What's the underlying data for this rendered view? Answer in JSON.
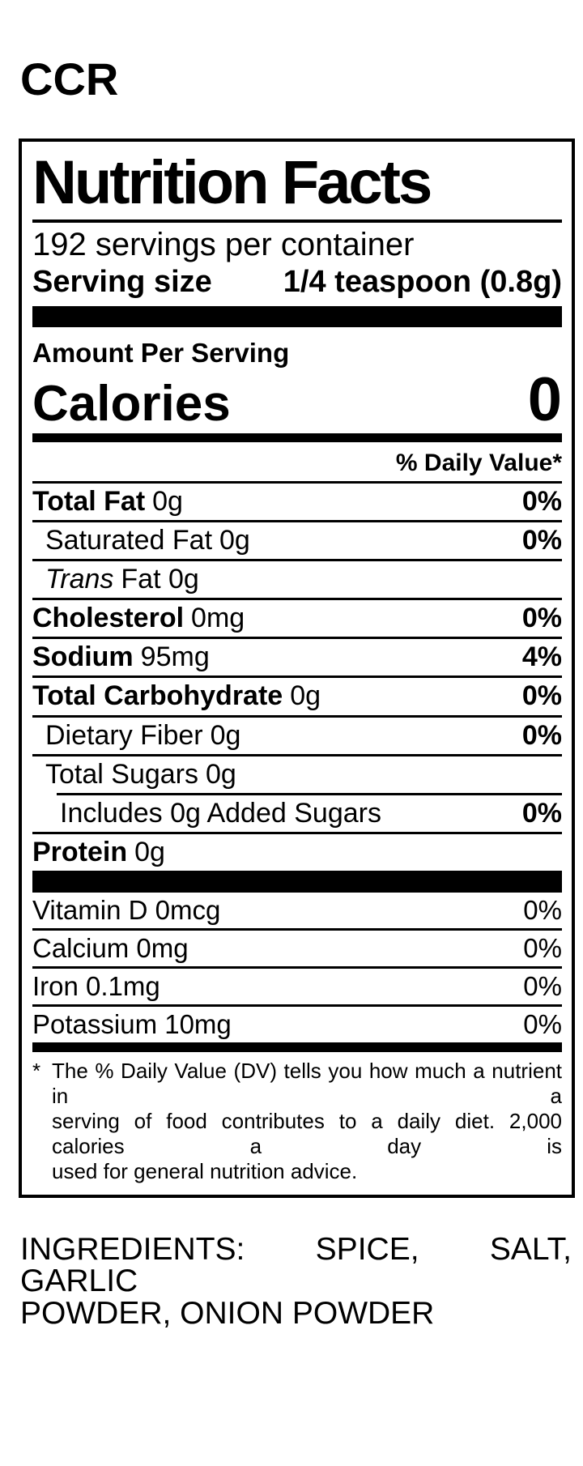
{
  "brand": "CCR",
  "label": {
    "title": "Nutrition Facts",
    "servings_per_container": "192 servings per container",
    "serving_size": {
      "label": "Serving size",
      "value": "1/4 teaspoon (0.8g)"
    },
    "amount_per_serving": "Amount Per Serving",
    "calories": {
      "label": "Calories",
      "value": "0"
    },
    "daily_value_header": "% Daily Value*",
    "rows": [
      {
        "name": "Total Fat",
        "amount": "0g",
        "dv": "0%"
      },
      {
        "name": "Saturated Fat",
        "amount": "0g",
        "dv": "0%"
      },
      {
        "name": "Trans",
        "amount": "Fat 0g",
        "dv": ""
      },
      {
        "name": "Cholesterol",
        "amount": "0mg",
        "dv": "0%"
      },
      {
        "name": "Sodium",
        "amount": "95mg",
        "dv": "4%"
      },
      {
        "name": "Total Carbohydrate",
        "amount": "0g",
        "dv": "0%"
      },
      {
        "name": "Dietary Fiber",
        "amount": "0g",
        "dv": "0%"
      },
      {
        "name": "Total Sugars",
        "amount": "0g",
        "dv": ""
      },
      {
        "name": "Includes 0g Added Sugars",
        "amount": "",
        "dv": "0%"
      },
      {
        "name": "Protein",
        "amount": "0g",
        "dv": ""
      }
    ],
    "vitamins": [
      {
        "name": "Vitamin D 0mcg",
        "dv": "0%"
      },
      {
        "name": "Calcium 0mg",
        "dv": "0%"
      },
      {
        "name": "Iron 0.1mg",
        "dv": "0%"
      },
      {
        "name": "Potassium 10mg",
        "dv": "0%"
      }
    ],
    "footnote": {
      "star": "*",
      "lines": [
        "The % Daily Value (DV) tells you how much a nutrient in a",
        "serving of food contributes to a daily diet. 2,000 calories a day is",
        "used for general nutrition advice."
      ]
    }
  },
  "ingredients": {
    "lines": [
      "INGREDIENTS: SPICE, SALT, GARLIC",
      "POWDER, ONION POWDER"
    ]
  }
}
